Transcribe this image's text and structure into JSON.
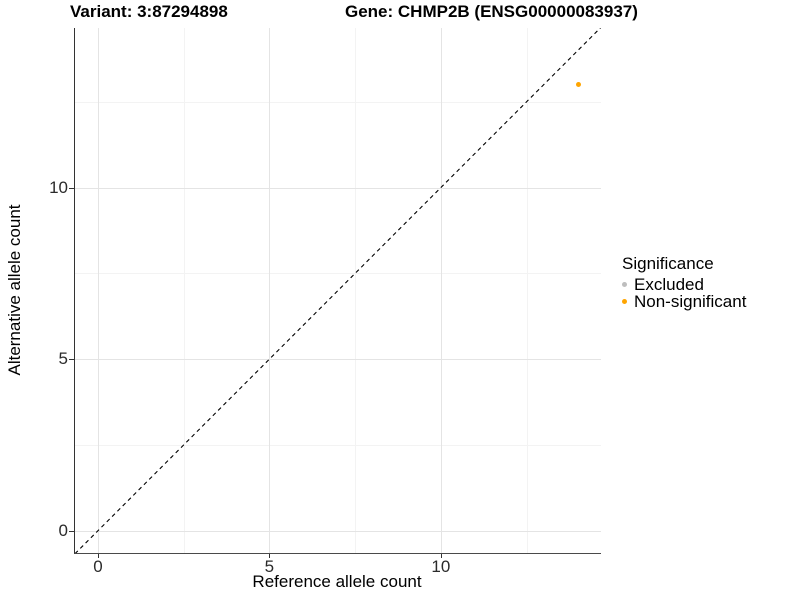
{
  "title": {
    "variant": "Variant: 3:87294898",
    "gene": "Gene: CHMP2B (ENSG00000083937)"
  },
  "legend": {
    "title": "Significance",
    "items": [
      {
        "label": "Excluded",
        "color": "#bebebe"
      },
      {
        "label": "Non-significant",
        "color": "#ffa500"
      }
    ]
  },
  "chart_data": {
    "type": "scatter",
    "title": "Variant: 3:87294898 | Gene: CHMP2B (ENSG00000083937)",
    "xlabel": "Reference allele count",
    "ylabel": "Alternative allele count",
    "xlim": [
      -0.67,
      14.67
    ],
    "ylim": [
      -0.65,
      14.65
    ],
    "x_major_ticks": [
      0,
      5,
      10
    ],
    "y_major_ticks": [
      0,
      5,
      10
    ],
    "x_minor_ticks": [
      2.5,
      7.5,
      12.5
    ],
    "y_minor_ticks": [
      2.5,
      7.5,
      12.5
    ],
    "grid": true,
    "axis_color": "#333333",
    "major_grid_color": "#e4e4e4",
    "minor_grid_color": "#f3f3f3",
    "identity_line": {
      "type": "y=x",
      "style": "dashed",
      "color": "#000000",
      "from": -0.67,
      "to": 14.67
    },
    "series": [
      {
        "name": "Excluded",
        "color": "#bebebe",
        "points": []
      },
      {
        "name": "Non-significant",
        "color": "#ffa500",
        "points": [
          {
            "x": 14,
            "y": 13
          }
        ]
      }
    ],
    "legend_title": "Significance",
    "legend_position": "right"
  }
}
